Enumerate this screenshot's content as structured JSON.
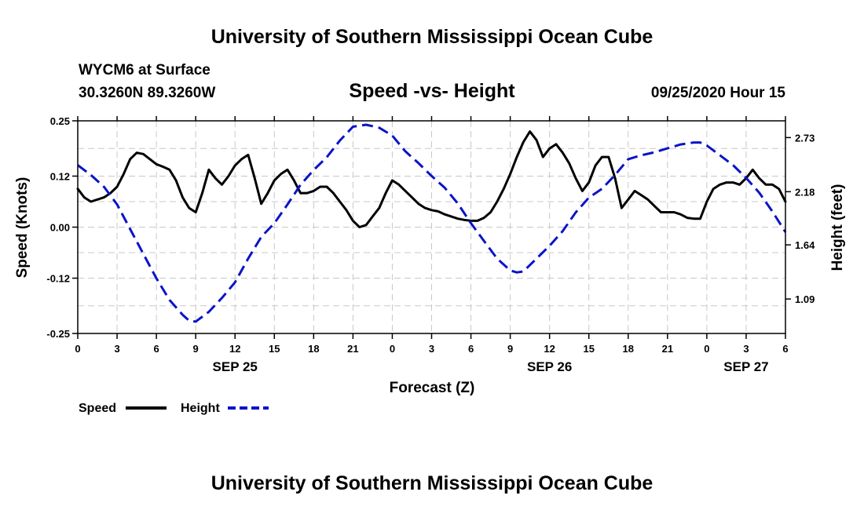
{
  "header": {
    "top_title": "University of Southern Mississippi Ocean Cube",
    "bottom_title": "University of Southern Mississippi Ocean Cube",
    "station_line1": "WYCM6 at Surface",
    "station_line2": "30.3260N 89.3260W",
    "datetime": "09/25/2020 Hour 15"
  },
  "colors": {
    "speed": "#000000",
    "height": "#0a14c8",
    "grid": "#c8c8c8",
    "axis": "#000000"
  },
  "chart_data": {
    "type": "line",
    "title": "Speed -vs- Height",
    "xlabel": "Forecast (Z)",
    "ylabel": "Speed (Knots)",
    "y2label": "Height (feet)",
    "x_range": [
      0,
      54
    ],
    "ylim": [
      -0.25,
      0.25
    ],
    "y2lim": [
      0.74,
      2.9
    ],
    "x_ticks": [
      0,
      3,
      6,
      9,
      12,
      15,
      18,
      21,
      24,
      27,
      30,
      33,
      36,
      39,
      42,
      45,
      48,
      51,
      54
    ],
    "x_tick_labels": [
      "0",
      "3",
      "6",
      "9",
      "12",
      "15",
      "18",
      "21",
      "0",
      "3",
      "6",
      "9",
      "12",
      "15",
      "18",
      "21",
      "0",
      "3",
      "6"
    ],
    "y_ticks": [
      "0.25",
      "0.12",
      "0.00",
      "-0.12",
      "-0.25"
    ],
    "y2_ticks": [
      "2.73",
      "2.18",
      "1.64",
      "1.09"
    ],
    "date_labels": [
      {
        "x": 12,
        "label": "SEP 25"
      },
      {
        "x": 36,
        "label": "SEP 26"
      },
      {
        "x": 51,
        "label": "SEP 27"
      }
    ],
    "legend": [
      {
        "name": "Speed",
        "style": "solid"
      },
      {
        "name": "Height",
        "style": "dashed"
      }
    ],
    "series": [
      {
        "name": "Speed",
        "axis": "left",
        "style": "solid",
        "x": [
          0,
          0.5,
          1,
          1.5,
          2,
          2.5,
          3,
          3.5,
          4,
          4.5,
          5,
          5.5,
          6,
          6.5,
          7,
          7.5,
          8,
          8.5,
          9,
          9.5,
          10,
          10.5,
          11,
          11.5,
          12,
          12.5,
          13,
          13.5,
          14,
          14.5,
          15,
          15.5,
          16,
          16.5,
          17,
          17.5,
          18,
          18.5,
          19,
          19.5,
          20,
          20.5,
          21,
          21.5,
          22,
          22.5,
          23,
          23.5,
          24,
          24.5,
          25,
          25.5,
          26,
          26.5,
          27,
          27.5,
          28,
          28.5,
          29,
          29.5,
          30,
          30.5,
          31,
          31.5,
          32,
          32.5,
          33,
          33.5,
          34,
          34.5,
          35,
          35.5,
          36,
          36.5,
          37,
          37.5,
          38,
          38.5,
          39,
          39.5,
          40,
          40.5,
          41,
          41.5,
          42,
          42.5,
          43,
          43.5,
          44,
          44.5,
          45,
          45.5,
          46,
          46.5,
          47,
          47.5,
          48,
          48.5,
          49,
          49.5,
          50,
          50.5,
          51,
          51.5,
          52,
          52.5,
          53,
          53.5,
          54
        ],
        "values": [
          0.09,
          0.07,
          0.06,
          0.065,
          0.07,
          0.08,
          0.095,
          0.125,
          0.16,
          0.175,
          0.172,
          0.16,
          0.148,
          0.142,
          0.135,
          0.11,
          0.07,
          0.045,
          0.035,
          0.08,
          0.135,
          0.115,
          0.1,
          0.12,
          0.145,
          0.16,
          0.17,
          0.115,
          0.055,
          0.08,
          0.11,
          0.125,
          0.135,
          0.11,
          0.08,
          0.08,
          0.085,
          0.095,
          0.095,
          0.08,
          0.06,
          0.04,
          0.015,
          0.0,
          0.005,
          0.025,
          0.045,
          0.08,
          0.11,
          0.1,
          0.085,
          0.07,
          0.055,
          0.045,
          0.04,
          0.037,
          0.03,
          0.025,
          0.02,
          0.017,
          0.015,
          0.015,
          0.022,
          0.035,
          0.06,
          0.09,
          0.125,
          0.165,
          0.2,
          0.225,
          0.205,
          0.165,
          0.185,
          0.195,
          0.175,
          0.15,
          0.115,
          0.085,
          0.105,
          0.145,
          0.165,
          0.165,
          0.115,
          0.045,
          0.065,
          0.085,
          0.075,
          0.065,
          0.05,
          0.035,
          0.035,
          0.035,
          0.03,
          0.022,
          0.02,
          0.02,
          0.06,
          0.09,
          0.1,
          0.105,
          0.105,
          0.1,
          0.115,
          0.135,
          0.115,
          0.1,
          0.1,
          0.09,
          0.06
        ]
      },
      {
        "name": "Height",
        "axis": "right",
        "style": "dashed",
        "x": [
          0,
          1,
          2,
          3,
          4,
          5,
          6,
          7,
          8,
          8.5,
          9,
          10,
          11,
          12,
          13,
          14,
          15,
          16,
          17,
          18,
          19,
          20,
          21,
          22,
          23,
          24,
          25,
          26,
          27,
          28,
          29,
          30,
          31,
          32,
          33,
          33.5,
          34,
          35,
          36,
          37,
          38,
          39,
          40,
          41,
          42,
          43,
          44,
          45,
          46,
          47,
          47.5,
          48,
          49,
          50,
          51,
          52,
          53,
          54
        ],
        "values": [
          2.45,
          2.35,
          2.23,
          2.05,
          1.8,
          1.55,
          1.3,
          1.08,
          0.93,
          0.87,
          0.86,
          0.96,
          1.1,
          1.26,
          1.5,
          1.72,
          1.86,
          2.05,
          2.25,
          2.4,
          2.53,
          2.7,
          2.84,
          2.86,
          2.83,
          2.75,
          2.59,
          2.47,
          2.34,
          2.22,
          2.06,
          1.86,
          1.68,
          1.5,
          1.38,
          1.36,
          1.37,
          1.5,
          1.63,
          1.78,
          1.97,
          2.12,
          2.21,
          2.35,
          2.51,
          2.55,
          2.58,
          2.62,
          2.66,
          2.68,
          2.68,
          2.65,
          2.55,
          2.45,
          2.32,
          2.17,
          1.98,
          1.77
        ]
      }
    ]
  }
}
